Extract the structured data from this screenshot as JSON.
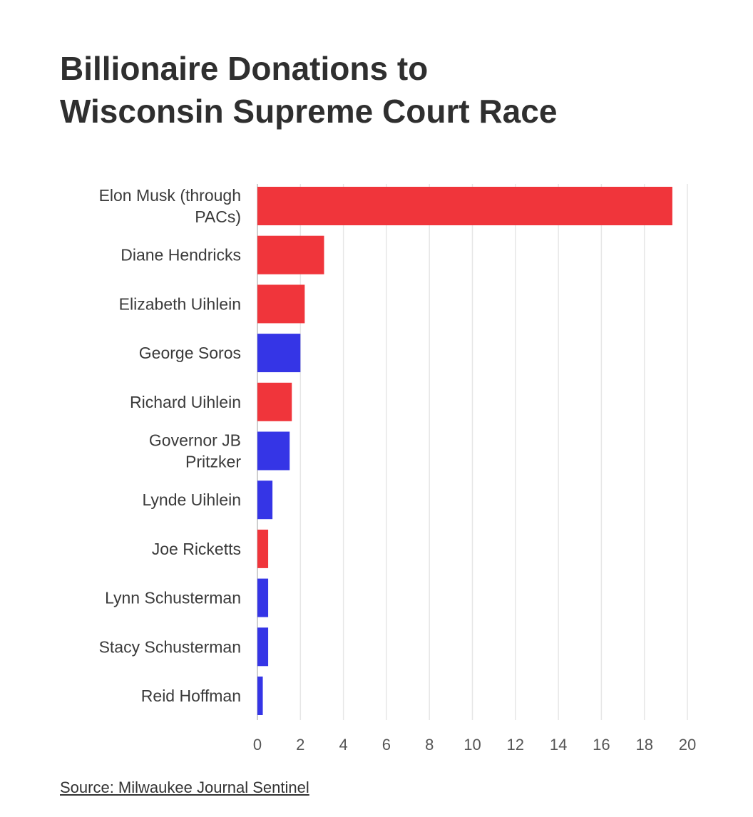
{
  "title_lines": [
    "Billionaire Donations to",
    "Wisconsin Supreme Court Race"
  ],
  "source": "Source: Milwaukee Journal Sentinel",
  "colors": {
    "red": "#f0353b",
    "blue": "#3535e6",
    "grid": "#e6e6e6",
    "axis": "#555555",
    "text": "#3a3a3a"
  },
  "chart_data": {
    "type": "bar",
    "orientation": "horizontal",
    "title": "Billionaire Donations to Wisconsin Supreme Court Race",
    "xlabel": "",
    "ylabel": "",
    "xlim": [
      0,
      20
    ],
    "xticks": [
      0,
      2,
      4,
      6,
      8,
      10,
      12,
      14,
      16,
      18,
      20
    ],
    "grid": true,
    "categories": [
      [
        "Elon Musk (through",
        "PACs)"
      ],
      [
        "Diane Hendricks"
      ],
      [
        "Elizabeth Uihlein"
      ],
      [
        "George Soros"
      ],
      [
        "Richard Uihlein"
      ],
      [
        "Governor JB",
        "Pritzker"
      ],
      [
        "Lynde Uihlein"
      ],
      [
        "Joe Ricketts"
      ],
      [
        "Lynn Schusterman"
      ],
      [
        "Stacy Schusterman"
      ],
      [
        "Reid Hoffman"
      ]
    ],
    "values": [
      19.3,
      3.1,
      2.2,
      2.0,
      1.6,
      1.5,
      0.7,
      0.5,
      0.5,
      0.5,
      0.25
    ],
    "bar_colors": [
      "red",
      "red",
      "red",
      "blue",
      "red",
      "blue",
      "blue",
      "red",
      "blue",
      "blue",
      "blue"
    ]
  }
}
